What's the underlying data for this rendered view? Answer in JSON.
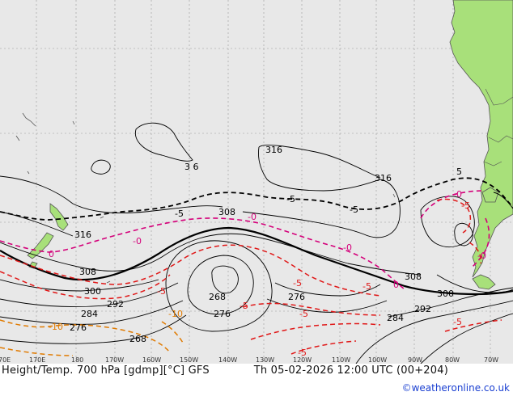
{
  "map": {
    "colors": {
      "ocean": "#e8e8e8",
      "land": "#a8e07a",
      "height_contour": "#000000",
      "temp_zero": "#d4007a",
      "temp_neg5": "#e01818",
      "temp_neg10": "#e07a00",
      "coast": "#555555",
      "grid": "#9a9a9a"
    },
    "height_labels": [
      "316",
      "3 6",
      "316",
      "308",
      "316",
      "308",
      "300",
      "292",
      "284",
      "276",
      "268",
      "268",
      "276",
      "276",
      "308",
      "300",
      "292",
      "284"
    ],
    "temp_labels": {
      "zero": [
        "-0",
        "-0",
        "0",
        "-0",
        "-0",
        "0",
        "-0"
      ],
      "minus5": [
        "-5",
        "-5",
        "-5",
        "-5",
        "-5",
        "-5",
        "-5",
        "-5",
        "-5",
        "-5",
        "-5",
        "5"
      ],
      "minus10": [
        "-10",
        "-10"
      ]
    },
    "axis_labels": [
      "70E",
      "170E",
      "180",
      "170W",
      "160W",
      "150W",
      "140W",
      "130W",
      "120W",
      "110W",
      "100W",
      "90W",
      "80W",
      "70W"
    ]
  },
  "footer": {
    "title": "Height/Temp. 700 hPa [gdmp][°C] GFS",
    "valid": "Th 05-02-2026 12:00 UTC (00+204)",
    "credit": "©weatheronline.co.uk"
  }
}
